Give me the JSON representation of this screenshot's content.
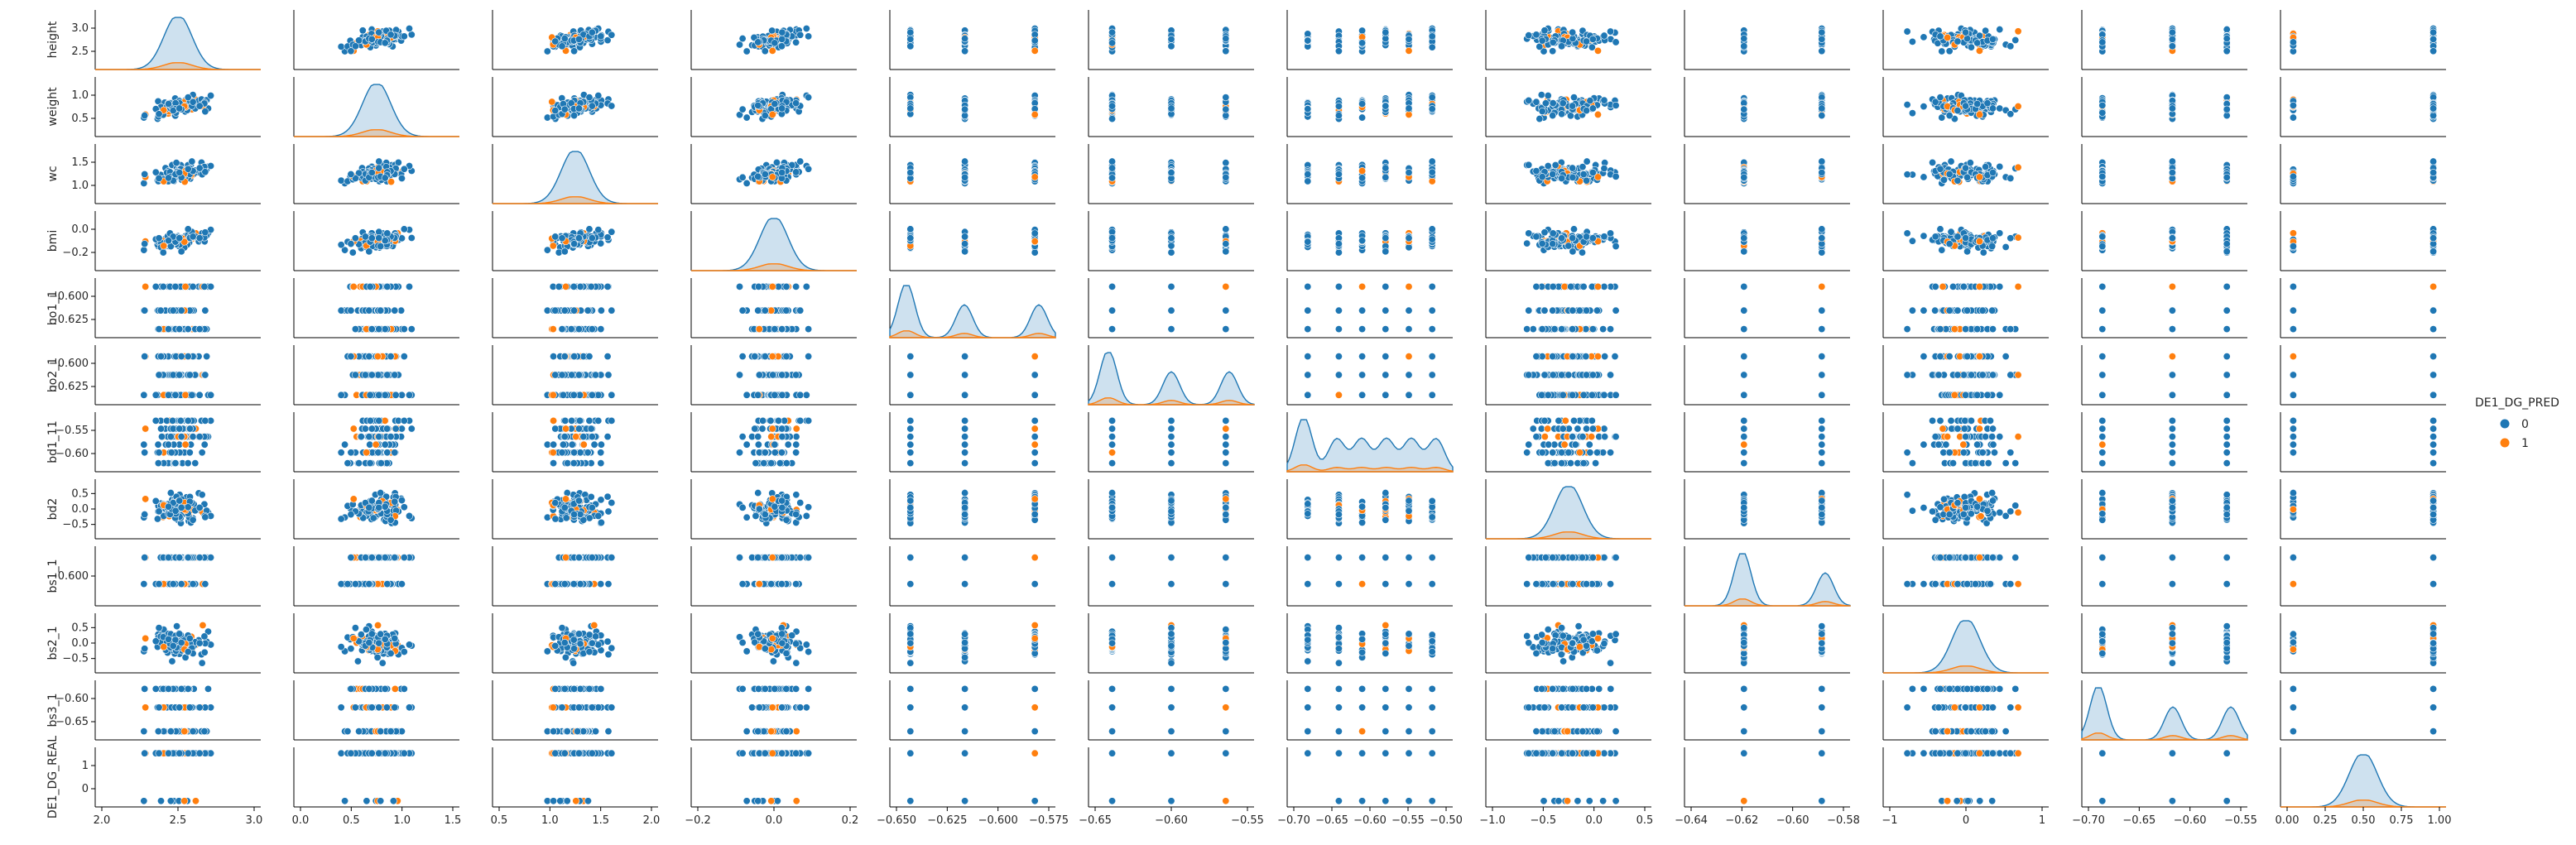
{
  "chart_data": {
    "type": "scatter",
    "kind": "pairplot",
    "hue": "DE1_DG_PRED",
    "variables": [
      "height",
      "weight",
      "wc",
      "bmi",
      "bo1_1",
      "bo2_1",
      "bd1_11",
      "bd2",
      "bs1_1",
      "bs2_1",
      "bs3_1",
      "DE1_DG_REAL"
    ],
    "y_vars": [
      "height",
      "weight",
      "wc",
      "bmi",
      "bo1_1",
      "bo2_1",
      "bd1_11",
      "bd2",
      "bs1_1",
      "bs2_1",
      "bs3_1",
      "DE1_DG_REAL"
    ],
    "diagonal": "kde",
    "x_ticks": [
      [
        "2.0",
        "2.5",
        "3.0"
      ],
      [
        "0.0",
        "0.5",
        "1.0",
        "1.5"
      ],
      [
        "0.5",
        "1.0",
        "1.5",
        "2.0"
      ],
      [
        "−0.2",
        "0.0",
        "0.2"
      ],
      [
        "−0.650",
        "−0.625",
        "−0.600",
        "−0.575"
      ],
      [
        "−0.65",
        "−0.60",
        "−0.55"
      ],
      [
        "−0.70",
        "−0.65",
        "−0.60",
        "−0.55",
        "−0.50"
      ],
      [
        "−1.0",
        "−0.5",
        "0.0",
        "0.5"
      ],
      [
        "−0.64",
        "−0.62",
        "−0.60",
        "−0.58"
      ],
      [
        "−1",
        "0",
        "1"
      ],
      [
        "−0.70",
        "−0.65",
        "−0.60",
        "−0.55"
      ],
      [
        "0.00",
        "0.25",
        "0.50",
        "0.75",
        "1.00"
      ]
    ],
    "y_ticks": [
      [
        "2.5",
        "3.0"
      ],
      [
        "0.5",
        "1.0"
      ],
      [
        "1.0",
        "1.5"
      ],
      [
        "−0.2",
        "0.0"
      ],
      [
        "−0.625",
        "−0.600"
      ],
      [
        "−0.625",
        "−0.600"
      ],
      [
        "−0.60",
        "−0.55"
      ],
      [
        "−0.5",
        "0.0",
        "0.5"
      ],
      [
        "−0.600"
      ],
      [
        "−0.5",
        "0.0",
        "0.5"
      ],
      [
        "−0.65",
        "−0.60"
      ],
      [
        "0",
        "1"
      ]
    ],
    "series": [
      {
        "name": "0",
        "color": "#1f77b4"
      },
      {
        "name": "1",
        "color": "#ff7f0e"
      }
    ],
    "legend": {
      "title": "DE1_DG_PRED",
      "labels": [
        "0",
        "1"
      ],
      "placement": "right"
    }
  }
}
